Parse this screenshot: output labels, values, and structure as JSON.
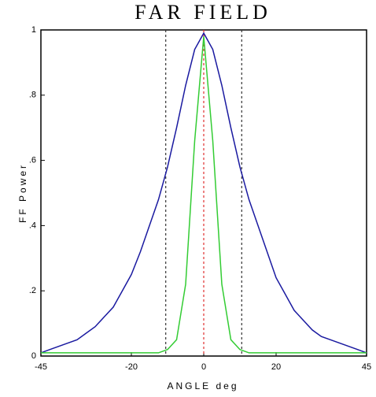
{
  "chart_data": {
    "type": "line",
    "title": "FAR FIELD",
    "x_label": "ANGLE deg",
    "y_label": "FF Power",
    "x": [
      -45,
      -42.5,
      -40,
      -37.5,
      -35,
      -32.5,
      -30,
      -27.5,
      -25,
      -22.5,
      -20,
      -17.5,
      -15,
      -12.5,
      -10,
      -7.5,
      -5,
      -2.5,
      0,
      2.5,
      5,
      7.5,
      10,
      12.5,
      15,
      17.5,
      20,
      22.5,
      25,
      27.5,
      30,
      32.5,
      35,
      37.5,
      40,
      42.5,
      45
    ],
    "series": [
      {
        "color": "#1a1aa0",
        "values": [
          0.01,
          0.02,
          0.03,
          0.04,
          0.05,
          0.07,
          0.09,
          0.12,
          0.15,
          0.2,
          0.25,
          0.32,
          0.4,
          0.48,
          0.58,
          0.7,
          0.83,
          0.94,
          0.99,
          0.94,
          0.83,
          0.7,
          0.58,
          0.48,
          0.4,
          0.32,
          0.24,
          0.19,
          0.14,
          0.11,
          0.08,
          0.06,
          0.05,
          0.04,
          0.03,
          0.02,
          0.01
        ]
      },
      {
        "color": "#33cc33",
        "values": [
          0.01,
          0.01,
          0.01,
          0.01,
          0.01,
          0.01,
          0.01,
          0.01,
          0.01,
          0.01,
          0.01,
          0.01,
          0.01,
          0.01,
          0.02,
          0.05,
          0.22,
          0.66,
          0.98,
          0.66,
          0.22,
          0.05,
          0.02,
          0.01,
          0.01,
          0.01,
          0.01,
          0.01,
          0.01,
          0.01,
          0.01,
          0.01,
          0.01,
          0.01,
          0.01,
          0.01,
          0.01
        ]
      }
    ],
    "vlines": [
      {
        "x": -10.5,
        "color": "#333333"
      },
      {
        "x": 0,
        "color": "#e03030"
      },
      {
        "x": 10.5,
        "color": "#333333"
      }
    ],
    "xlim": [
      -45,
      45
    ],
    "xticks": [
      -45,
      -20,
      0,
      20,
      45
    ],
    "ylim": [
      0,
      1
    ],
    "yticks": [
      0,
      {
        "value": 0.2,
        "label": ".2"
      },
      {
        "value": 0.4,
        "label": ".4"
      },
      {
        "value": 0.6,
        "label": ".6"
      },
      {
        "value": 0.8,
        "label": ".8"
      },
      1
    ],
    "grid": false
  }
}
